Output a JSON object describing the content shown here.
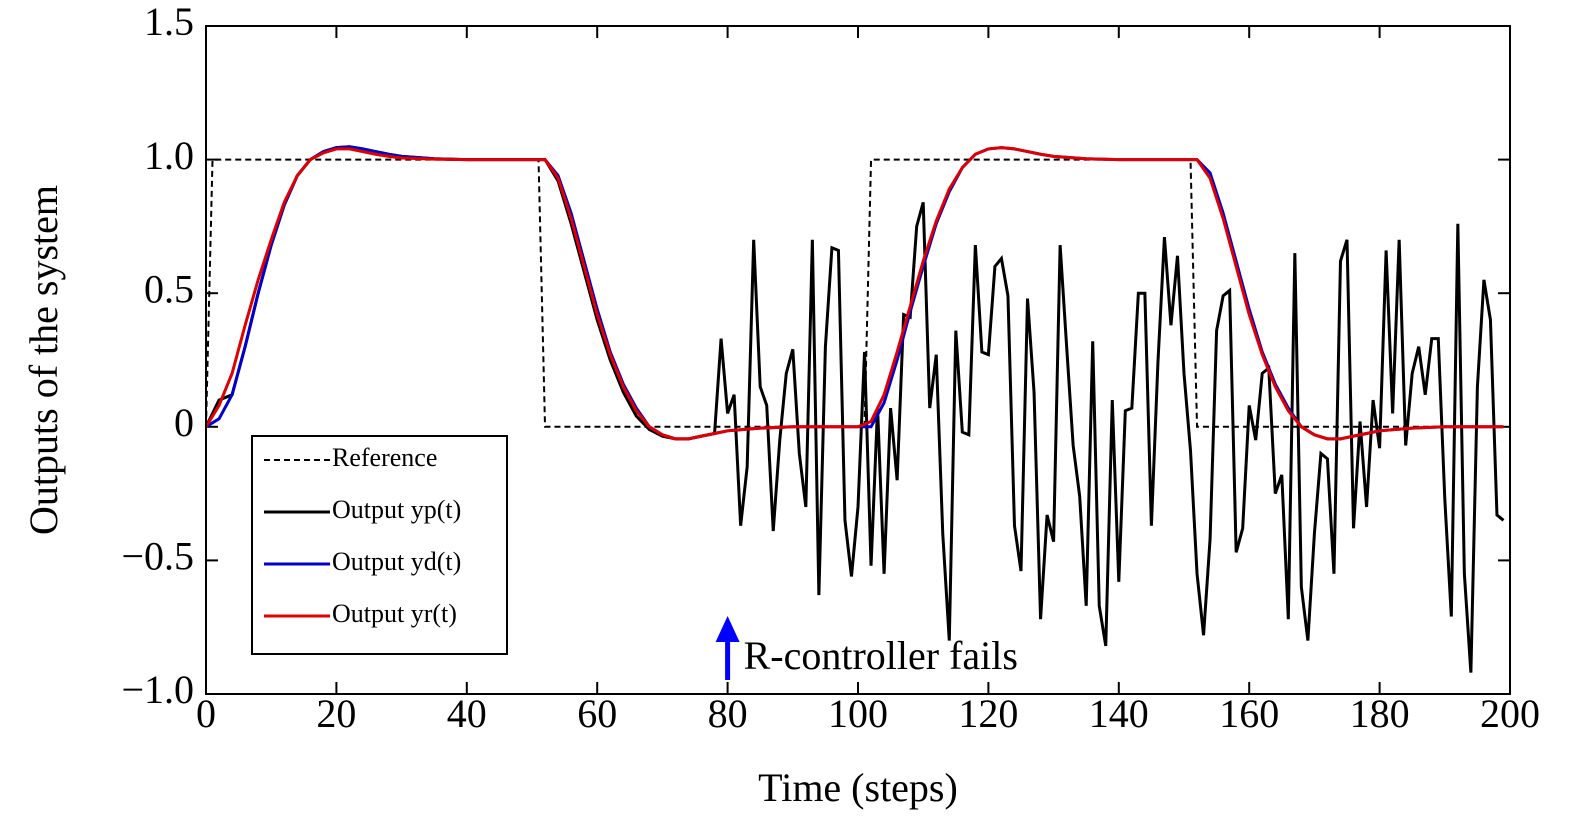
{
  "chart_data": {
    "type": "line",
    "xlabel": "Time (steps)",
    "ylabel": "Outputs of the system",
    "xlim": [
      0,
      200
    ],
    "ylim": [
      -1,
      1.5
    ],
    "xticks": [
      0,
      20,
      40,
      60,
      80,
      100,
      120,
      140,
      160,
      180,
      200
    ],
    "yticks": [
      {
        "value": -1,
        "label": "−1.0"
      },
      {
        "value": -0.5,
        "label": "−0.5"
      },
      0,
      0.5,
      {
        "value": 1,
        "label": "1.0"
      },
      {
        "value": 1.5,
        "label": "1.5"
      }
    ],
    "legend": "lower left",
    "annotation": {
      "text": "R-controller fails",
      "x": 80,
      "color": "#0000ff"
    },
    "series": [
      {
        "name": "Reference",
        "color": "#000000",
        "dash": true,
        "x": [
          0,
          1,
          51,
          52,
          101,
          102,
          151,
          152,
          199
        ],
        "values": [
          0,
          1,
          1,
          0,
          0,
          1,
          1,
          0,
          0
        ]
      },
      {
        "name": "Output yp(t)",
        "color": "#000000",
        "x": [
          0,
          2,
          4,
          6,
          8,
          10,
          12,
          14,
          16,
          18,
          20,
          22,
          24,
          26,
          28,
          30,
          35,
          40,
          45,
          50,
          52,
          54,
          56,
          58,
          60,
          62,
          64,
          66,
          68,
          70,
          72,
          74,
          76,
          78,
          79,
          80,
          81,
          82,
          83,
          84,
          85,
          86,
          87,
          88,
          89,
          90,
          91,
          92,
          93,
          94,
          95,
          96,
          97,
          98,
          99,
          100,
          101,
          102,
          103,
          104,
          105,
          106,
          107,
          108,
          109,
          110,
          111,
          112,
          113,
          114,
          115,
          116,
          117,
          118,
          119,
          120,
          121,
          122,
          123,
          124,
          125,
          126,
          127,
          128,
          129,
          130,
          131,
          132,
          133,
          134,
          135,
          136,
          137,
          138,
          139,
          140,
          141,
          142,
          143,
          144,
          145,
          146,
          147,
          148,
          149,
          150,
          151,
          152,
          153,
          154,
          155,
          156,
          157,
          158,
          159,
          160,
          161,
          162,
          163,
          164,
          165,
          166,
          167,
          168,
          169,
          170,
          171,
          172,
          173,
          174,
          175,
          176,
          177,
          178,
          179,
          180,
          181,
          182,
          183,
          184,
          185,
          186,
          187,
          188,
          189,
          190,
          191,
          192,
          193,
          194,
          195,
          196,
          197,
          198,
          199
        ],
        "values": [
          0,
          0.1,
          0.12,
          0.3,
          0.5,
          0.68,
          0.83,
          0.94,
          1.0,
          1.03,
          1.045,
          1.048,
          1.04,
          1.03,
          1.02,
          1.012,
          1.003,
          1.0,
          1.0,
          1.0,
          1.0,
          0.92,
          0.76,
          0.58,
          0.4,
          0.25,
          0.13,
          0.04,
          -0.01,
          -0.035,
          -0.045,
          -0.045,
          -0.035,
          -0.025,
          0.33,
          0.05,
          0.12,
          -0.37,
          -0.15,
          0.7,
          0.15,
          0.08,
          -0.39,
          -0.05,
          0.2,
          0.29,
          -0.1,
          -0.3,
          0.7,
          -0.63,
          0.3,
          0.67,
          0.66,
          -0.35,
          -0.56,
          -0.3,
          0.28,
          -0.52,
          0.07,
          -0.55,
          0.07,
          -0.2,
          0.42,
          0.41,
          0.75,
          0.84,
          0.07,
          0.27,
          -0.4,
          -0.8,
          0.36,
          -0.02,
          -0.03,
          0.68,
          0.28,
          0.27,
          0.6,
          0.63,
          0.49,
          -0.37,
          -0.54,
          0.48,
          0.13,
          -0.72,
          -0.33,
          -0.43,
          0.68,
          0.3,
          -0.07,
          -0.26,
          -0.67,
          0.32,
          -0.67,
          -0.82,
          0.1,
          -0.58,
          0.06,
          0.07,
          0.5,
          0.5,
          -0.37,
          0.24,
          0.71,
          0.38,
          0.64,
          0.2,
          -0.09,
          -0.55,
          -0.78,
          -0.42,
          0.36,
          0.49,
          0.51,
          -0.47,
          -0.38,
          0.08,
          -0.05,
          0.2,
          0.22,
          -0.25,
          -0.18,
          -0.72,
          0.65,
          -0.6,
          -0.8,
          -0.4,
          -0.1,
          -0.12,
          -0.55,
          0.62,
          0.7,
          -0.38,
          0.02,
          -0.3,
          0.1,
          -0.08,
          0.66,
          0.05,
          0.7,
          -0.07,
          0.2,
          0.3,
          0.12,
          0.33,
          0.33,
          -0.27,
          -0.71,
          0.76,
          -0.55,
          -0.92,
          0.15,
          0.55,
          0.4,
          -0.33,
          -0.35
        ]
      },
      {
        "name": "Output yd(t)",
        "color": "#0000cc",
        "x": [
          0,
          2,
          4,
          6,
          8,
          10,
          12,
          14,
          16,
          18,
          20,
          22,
          24,
          26,
          28,
          30,
          35,
          40,
          45,
          50,
          52,
          54,
          56,
          58,
          60,
          62,
          64,
          66,
          68,
          70,
          72,
          74,
          76,
          78,
          80,
          85,
          90,
          100,
          102,
          104,
          106,
          108,
          110,
          112,
          114,
          116,
          118,
          120,
          122,
          124,
          126,
          128,
          130,
          135,
          140,
          150,
          152,
          154,
          156,
          158,
          160,
          162,
          164,
          166,
          168,
          170,
          172,
          174,
          176,
          178,
          180,
          185,
          190,
          199
        ],
        "values": [
          0,
          0.03,
          0.12,
          0.3,
          0.5,
          0.68,
          0.83,
          0.94,
          1.0,
          1.03,
          1.045,
          1.048,
          1.04,
          1.03,
          1.02,
          1.012,
          1.003,
          1.0,
          1.0,
          1.0,
          1.0,
          0.94,
          0.8,
          0.62,
          0.44,
          0.28,
          0.16,
          0.07,
          0.0,
          -0.03,
          -0.045,
          -0.045,
          -0.035,
          -0.025,
          -0.015,
          -0.005,
          0,
          0,
          0.0,
          0.09,
          0.25,
          0.43,
          0.6,
          0.76,
          0.88,
          0.97,
          1.02,
          1.04,
          1.045,
          1.04,
          1.03,
          1.02,
          1.012,
          1.003,
          1.0,
          1.0,
          1.0,
          0.95,
          0.8,
          0.62,
          0.44,
          0.28,
          0.16,
          0.07,
          0.0,
          -0.03,
          -0.045,
          -0.045,
          -0.035,
          -0.025,
          -0.015,
          -0.005,
          0,
          0
        ]
      },
      {
        "name": "Output yr(t)",
        "color": "#e00000",
        "x": [
          0,
          2,
          4,
          6,
          8,
          10,
          12,
          14,
          16,
          18,
          20,
          22,
          24,
          26,
          28,
          30,
          35,
          40,
          45,
          50,
          52,
          54,
          56,
          58,
          60,
          62,
          64,
          66,
          68,
          70,
          72,
          74,
          76,
          78,
          80,
          85,
          90,
          100,
          102,
          104,
          106,
          108,
          110,
          112,
          114,
          116,
          118,
          120,
          122,
          124,
          126,
          128,
          130,
          135,
          140,
          150,
          152,
          154,
          156,
          158,
          160,
          162,
          164,
          166,
          168,
          170,
          172,
          174,
          176,
          178,
          180,
          185,
          190,
          199
        ],
        "values": [
          0,
          0.08,
          0.2,
          0.38,
          0.55,
          0.7,
          0.84,
          0.94,
          1.0,
          1.025,
          1.04,
          1.04,
          1.03,
          1.02,
          1.012,
          1.006,
          1.002,
          1.0,
          1.0,
          1.0,
          1.0,
          0.93,
          0.78,
          0.6,
          0.42,
          0.27,
          0.15,
          0.06,
          0.0,
          -0.03,
          -0.045,
          -0.045,
          -0.035,
          -0.025,
          -0.015,
          -0.005,
          0,
          0,
          0.02,
          0.12,
          0.28,
          0.45,
          0.62,
          0.77,
          0.89,
          0.97,
          1.02,
          1.04,
          1.045,
          1.04,
          1.03,
          1.02,
          1.012,
          1.003,
          1.0,
          1.0,
          1.0,
          0.93,
          0.78,
          0.6,
          0.42,
          0.27,
          0.15,
          0.06,
          0.0,
          -0.03,
          -0.045,
          -0.045,
          -0.035,
          -0.025,
          -0.015,
          -0.005,
          0,
          0
        ]
      }
    ]
  }
}
